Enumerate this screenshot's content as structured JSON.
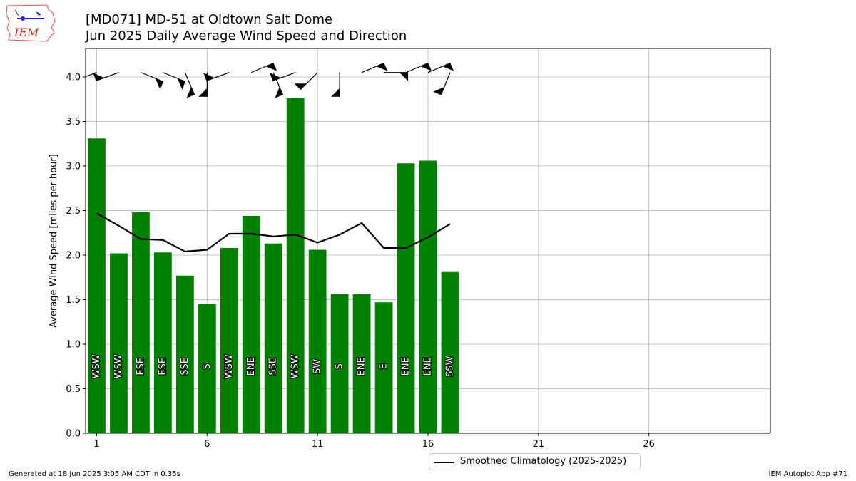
{
  "header": {
    "title_line1": "[MD071] MD-51 at Oldtown Salt Dome",
    "title_line2": "Jun 2025 Daily Average Wind Speed and Direction",
    "logo_text": "IEM"
  },
  "footer": {
    "generated": "Generated at 18 Jun 2025 3:05 AM CDT in 0.35s",
    "app": "IEM Autoplot App #71"
  },
  "legend": {
    "label": "Smoothed Climatology (2025-2025)"
  },
  "colors": {
    "bar": "#008000",
    "climo_line": "#000000",
    "grid": "#b0b0b0",
    "barb": "#000000"
  },
  "chart_data": {
    "type": "bar",
    "ylabel": "Average Wind Speed [miles per hour]",
    "xlabel": "",
    "xlim": [
      0.5,
      31.5
    ],
    "ylim": [
      0,
      4.32
    ],
    "xticks": [
      1,
      6,
      11,
      16,
      21,
      26
    ],
    "yticks": [
      0.0,
      0.5,
      1.0,
      1.5,
      2.0,
      2.5,
      3.0,
      3.5,
      4.0
    ],
    "grid": true,
    "legend_position": "below",
    "days": [
      1,
      2,
      3,
      4,
      5,
      6,
      7,
      8,
      9,
      10,
      11,
      12,
      13,
      14,
      15,
      16,
      17
    ],
    "values": [
      3.31,
      2.02,
      2.48,
      2.03,
      1.77,
      1.45,
      2.08,
      2.44,
      2.13,
      3.76,
      2.06,
      1.56,
      1.56,
      1.47,
      3.03,
      3.06,
      1.81
    ],
    "directions": [
      "WSW",
      "WSW",
      "ESE",
      "ESE",
      "SSE",
      "S",
      "WSW",
      "ENE",
      "SSE",
      "WSW",
      "SW",
      "S",
      "ENE",
      "E",
      "ENE",
      "ENE",
      "SSW"
    ],
    "wind_dir_degrees": [
      250,
      250,
      112,
      112,
      157,
      180,
      250,
      67,
      157,
      250,
      225,
      180,
      67,
      90,
      67,
      67,
      202
    ],
    "series": [
      {
        "name": "Smoothed Climatology (2025-2025)",
        "type": "line",
        "x": [
          1,
          2,
          3,
          4,
          5,
          6,
          7,
          8,
          9,
          10,
          11,
          12,
          13,
          14,
          15,
          16,
          17
        ],
        "values": [
          2.47,
          2.33,
          2.18,
          2.17,
          2.04,
          2.06,
          2.24,
          2.24,
          2.21,
          2.23,
          2.14,
          2.23,
          2.36,
          2.08,
          2.08,
          2.2,
          2.35
        ]
      }
    ]
  }
}
